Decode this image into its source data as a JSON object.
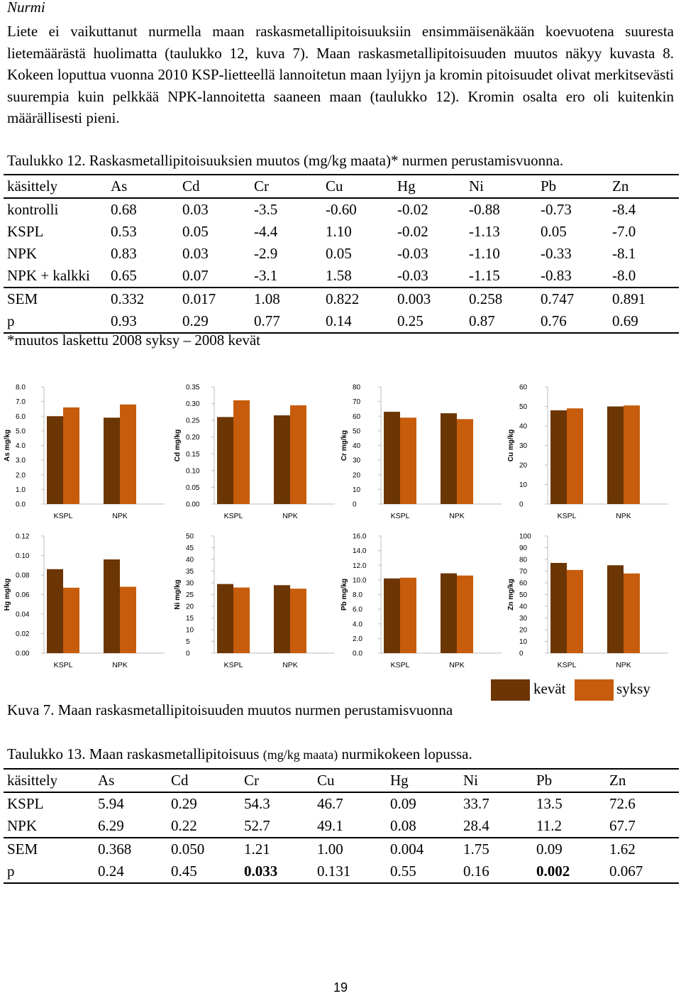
{
  "section_heading": "Nurmi",
  "paragraph": [
    "Liete ei vaikuttanut nurmella maan raskasmetallipitoisuuksiin ensimmäisenäkään koevuotena suuresta lietemäärästä huolimatta (taulukko 12, kuva 7). Maan raskasmetallipitoisuuden muutos näkyy kuvasta 8. Kokeen loputtua vuonna 2010 KSP-lietteellä lannoitetun maan lyijyn ja kromin pitoisuudet olivat merkitsevästi suurempia kuin pelkkää NPK-lannoitetta saaneen maan (taulukko 12). Kromin osalta ero oli kuitenkin määrällisesti pieni."
  ],
  "table12": {
    "caption": "Taulukko 12. Raskasmetallipitoisuuksien muutos (mg/kg maata)* nurmen perustamisvuonna.",
    "headers": [
      "käsittely",
      "As",
      "Cd",
      "Cr",
      "Cu",
      "Hg",
      "Ni",
      "Pb",
      "Zn"
    ],
    "rows": [
      [
        "kontrolli",
        "0.68",
        "0.03",
        "-3.5",
        "-0.60",
        "-0.02",
        "-0.88",
        "-0.73",
        "-8.4"
      ],
      [
        "KSPL",
        "0.53",
        "0.05",
        "-4.4",
        "1.10",
        "-0.02",
        "-1.13",
        "0.05",
        "-7.0"
      ],
      [
        "NPK",
        "0.83",
        "0.03",
        "-2.9",
        "0.05",
        "-0.03",
        "-1.10",
        "-0.33",
        "-8.1"
      ],
      [
        "NPK + kalkki",
        "0.65",
        "0.07",
        "-3.1",
        "1.58",
        "-0.03",
        "-1.15",
        "-0.83",
        "-8.0"
      ],
      [
        "SEM",
        "0.332",
        "0.017",
        "1.08",
        "0.822",
        "0.003",
        "0.258",
        "0.747",
        "0.891"
      ],
      [
        "p",
        "0.93",
        "0.29",
        "0.77",
        "0.14",
        "0.25",
        "0.87",
        "0.76",
        "0.69"
      ]
    ],
    "footnote": "*muutos laskettu 2008 syksy – 2008 kevät"
  },
  "colors": {
    "kevat": "#6b3504",
    "syksy": "#c75c0c",
    "axis": "#bdbdbd"
  },
  "chart_data": [
    {
      "type": "bar",
      "ylabel": "As mg/kg",
      "categories": [
        "KSPL",
        "NPK"
      ],
      "ylim": [
        0,
        8
      ],
      "yticks": [
        "0.0",
        "1.0",
        "2.0",
        "3.0",
        "4.0",
        "5.0",
        "6.0",
        "7.0",
        "8.0"
      ],
      "series": [
        {
          "name": "kevät",
          "values": [
            6.0,
            5.9
          ]
        },
        {
          "name": "syksy",
          "values": [
            6.6,
            6.8
          ]
        }
      ]
    },
    {
      "type": "bar",
      "ylabel": "Cd mg/kg",
      "categories": [
        "KSPL",
        "NPK"
      ],
      "ylim": [
        0,
        0.35
      ],
      "yticks": [
        "0.00",
        "0.05",
        "0.10",
        "0.15",
        "0.20",
        "0.25",
        "0.30",
        "0.35"
      ],
      "series": [
        {
          "name": "kevät",
          "values": [
            0.26,
            0.265
          ]
        },
        {
          "name": "syksy",
          "values": [
            0.31,
            0.295
          ]
        }
      ]
    },
    {
      "type": "bar",
      "ylabel": "Cr mg/kg",
      "categories": [
        "KSPL",
        "NPK"
      ],
      "ylim": [
        0,
        80
      ],
      "yticks": [
        "0",
        "10",
        "20",
        "30",
        "40",
        "50",
        "60",
        "70",
        "80"
      ],
      "series": [
        {
          "name": "kevät",
          "values": [
            63,
            62
          ]
        },
        {
          "name": "syksy",
          "values": [
            59,
            58
          ]
        }
      ]
    },
    {
      "type": "bar",
      "ylabel": "Cu mg/kg",
      "categories": [
        "KSPL",
        "NPK"
      ],
      "ylim": [
        0,
        60
      ],
      "yticks": [
        "0",
        "10",
        "20",
        "30",
        "40",
        "50",
        "60"
      ],
      "series": [
        {
          "name": "kevät",
          "values": [
            48,
            50
          ]
        },
        {
          "name": "syksy",
          "values": [
            49,
            50.5
          ]
        }
      ]
    },
    {
      "type": "bar",
      "ylabel": "Hg mg/kg",
      "categories": [
        "KSPL",
        "NPK"
      ],
      "ylim": [
        0,
        0.12
      ],
      "yticks": [
        "0.00",
        "0.02",
        "0.04",
        "0.06",
        "0.08",
        "0.10",
        "0.12"
      ],
      "series": [
        {
          "name": "kevät",
          "values": [
            0.086,
            0.096
          ]
        },
        {
          "name": "syksy",
          "values": [
            0.067,
            0.068
          ]
        }
      ]
    },
    {
      "type": "bar",
      "ylabel": "Ni mg/kg",
      "categories": [
        "KSPL",
        "NPK"
      ],
      "ylim": [
        0,
        50
      ],
      "yticks": [
        "0",
        "5",
        "10",
        "15",
        "20",
        "25",
        "30",
        "35",
        "40",
        "45",
        "50"
      ],
      "series": [
        {
          "name": "kevät",
          "values": [
            29.5,
            29
          ]
        },
        {
          "name": "syksy",
          "values": [
            28,
            27.5
          ]
        }
      ]
    },
    {
      "type": "bar",
      "ylabel": "Pb mg/kg",
      "categories": [
        "KSPL",
        "NPK"
      ],
      "ylim": [
        0,
        16
      ],
      "yticks": [
        "0.0",
        "2.0",
        "4.0",
        "6.0",
        "8.0",
        "10.0",
        "12.0",
        "14.0",
        "16.0"
      ],
      "series": [
        {
          "name": "kevät",
          "values": [
            10.2,
            10.9
          ]
        },
        {
          "name": "syksy",
          "values": [
            10.3,
            10.6
          ]
        }
      ]
    },
    {
      "type": "bar",
      "ylabel": "Zn mg/kg",
      "categories": [
        "KSPL",
        "NPK"
      ],
      "ylim": [
        0,
        100
      ],
      "yticks": [
        "0",
        "10",
        "20",
        "30",
        "40",
        "50",
        "60",
        "70",
        "80",
        "90",
        "100"
      ],
      "series": [
        {
          "name": "kevät",
          "values": [
            77,
            75
          ]
        },
        {
          "name": "syksy",
          "values": [
            71,
            68
          ]
        }
      ]
    }
  ],
  "legend": {
    "kevat": "kevät",
    "syksy": "syksy"
  },
  "figure_caption": "Kuva 7. Maan raskasmetallipitoisuuden muutos nurmen perustamisvuonna",
  "table13": {
    "caption_main": "Taulukko 13. Maan raskasmetallipitoisuus",
    "caption_unit": "(mg/kg maata)",
    "caption_end": "nurmikokeen lopussa.",
    "headers": [
      "käsittely",
      "As",
      "Cd",
      "Cr",
      "Cu",
      "Hg",
      "Ni",
      "Pb",
      "Zn"
    ],
    "rows": [
      [
        "KSPL",
        "5.94",
        "0.29",
        "54.3",
        "46.7",
        "0.09",
        "33.7",
        "13.5",
        "72.6"
      ],
      [
        "NPK",
        "6.29",
        "0.22",
        "52.7",
        "49.1",
        "0.08",
        "28.4",
        "11.2",
        "67.7"
      ],
      [
        "SEM",
        "0.368",
        "0.050",
        "1.21",
        "1.00",
        "0.004",
        "1.75",
        "0.09",
        "1.62"
      ],
      [
        "p",
        "0.24",
        "0.45",
        "0.033",
        "0.131",
        "0.55",
        "0.16",
        "0.002",
        "0.067"
      ]
    ]
  },
  "page_number": "19"
}
